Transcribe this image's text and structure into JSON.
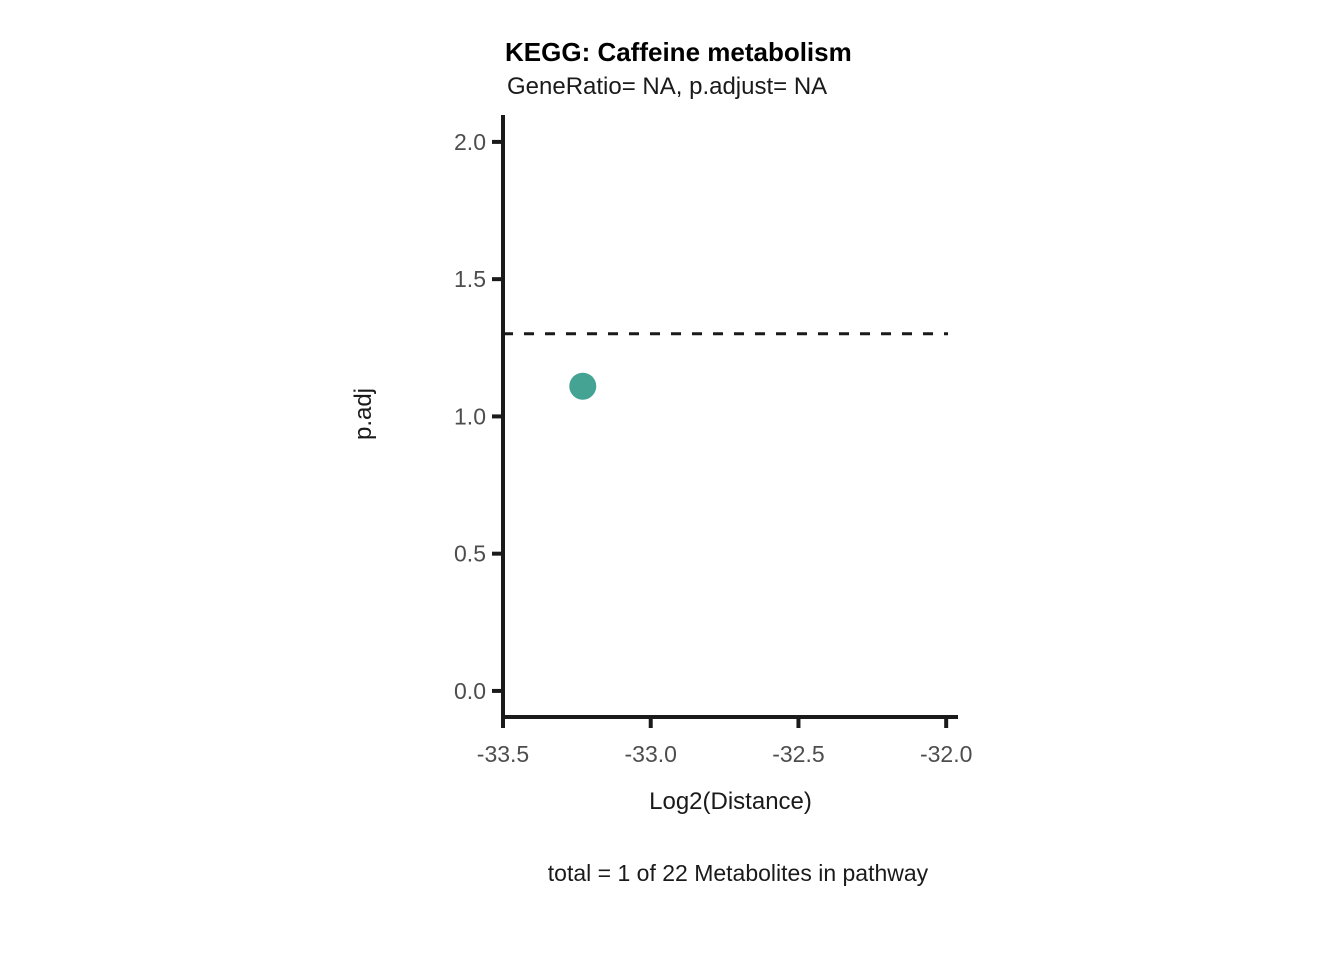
{
  "chart_data": {
    "type": "scatter",
    "title": "KEGG: Caffeine metabolism",
    "subtitle": "GeneRatio= NA, p.adjust= NA",
    "xlabel": "Log2(Distance)",
    "ylabel": "p.adj",
    "caption": "total = 1 of 22 Metabolites in pathway",
    "xlim": [
      -33.5,
      -31.96
    ],
    "ylim": [
      -0.095,
      2.098
    ],
    "x_ticks": [
      -33.5,
      -33.0,
      -32.5,
      -32.0
    ],
    "x_tick_labels": [
      "-33.5",
      "-33.0",
      "-32.5",
      "-32.0"
    ],
    "y_ticks": [
      0.0,
      0.5,
      1.0,
      1.5,
      2.0
    ],
    "y_tick_labels": [
      "0.0",
      "0.5",
      "1.0",
      "1.5",
      "2.0"
    ],
    "grid": false,
    "legend": "none",
    "points": [
      {
        "x": -33.23,
        "y": 1.11,
        "color": "#45a393",
        "radius_px": 13.5
      }
    ],
    "threshold_line": {
      "y": 1.301,
      "style": "dashed",
      "color": "#1a1a1a"
    },
    "axis_color": "#1a1a1a",
    "tick_label_color": "#4d4d4d"
  }
}
